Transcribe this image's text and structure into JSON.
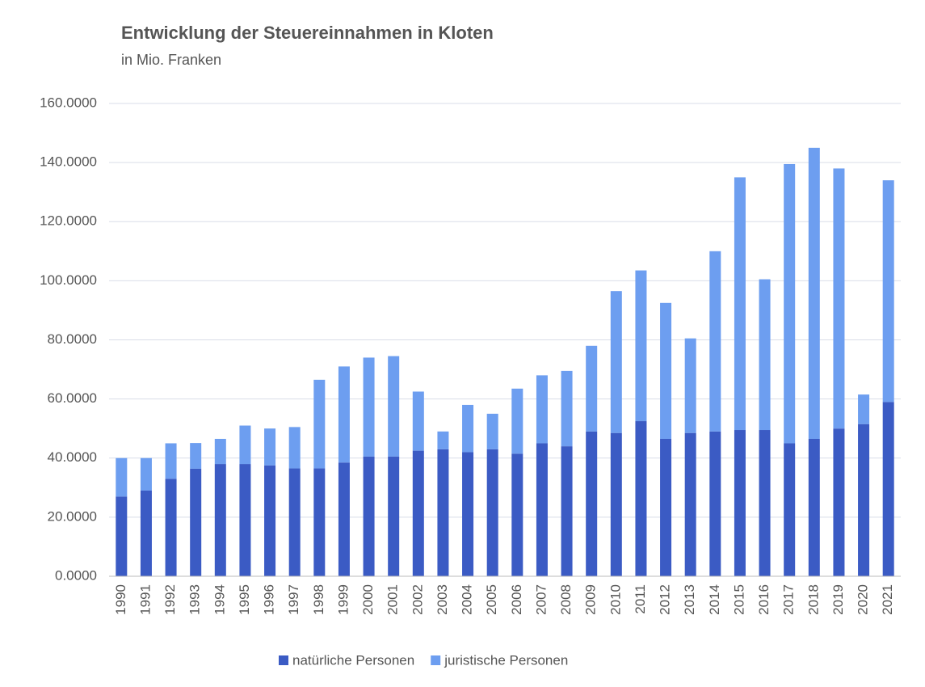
{
  "chart_data": {
    "type": "stacked_bar",
    "title": "Entwicklung der Steuereinnahmen in Kloten",
    "subtitle": "in Mio. Franken",
    "categories": [
      "1990",
      "1991",
      "1992",
      "1993",
      "1994",
      "1995",
      "1996",
      "1997",
      "1998",
      "1999",
      "2000",
      "2001",
      "2002",
      "2003",
      "2004",
      "2005",
      "2006",
      "2007",
      "2008",
      "2009",
      "2010",
      "2011",
      "2012",
      "2013",
      "2014",
      "2015",
      "2016",
      "2017",
      "2018",
      "2019",
      "2020",
      "2021"
    ],
    "series": [
      {
        "name": "natürliche Personen",
        "color": "#3b5bc4",
        "values": [
          27,
          29,
          33,
          36.4,
          38,
          38,
          37.5,
          36.5,
          36.5,
          38.5,
          40.5,
          40.5,
          42.5,
          43,
          42,
          43,
          41.5,
          45,
          44,
          49,
          48.5,
          52.5,
          46.5,
          48.5,
          49,
          49.5,
          49.5,
          45,
          46.5,
          50,
          51.5,
          59
        ]
      },
      {
        "name": "juristische Personen",
        "color": "#6d9ef0",
        "values": [
          13,
          11,
          12,
          8.7,
          8.5,
          13,
          12.5,
          14,
          30,
          32.5,
          33.5,
          34,
          20,
          6,
          16,
          12,
          22,
          23,
          25.5,
          29,
          48,
          51,
          46,
          32,
          61,
          85.5,
          51,
          94.5,
          98.5,
          88,
          10,
          75
        ]
      }
    ],
    "ylim": [
      0,
      160
    ],
    "yticks": [
      {
        "value": 0,
        "label": "0.0000"
      },
      {
        "value": 20,
        "label": "20.0000"
      },
      {
        "value": 40,
        "label": "40.0000"
      },
      {
        "value": 60,
        "label": "60.0000"
      },
      {
        "value": 80,
        "label": "80.0000"
      },
      {
        "value": 100,
        "label": "100.0000"
      },
      {
        "value": 120,
        "label": "120.0000"
      },
      {
        "value": 140,
        "label": "140.0000"
      },
      {
        "value": 160,
        "label": "160.0000"
      }
    ],
    "grid": true,
    "legend": "bottom"
  }
}
